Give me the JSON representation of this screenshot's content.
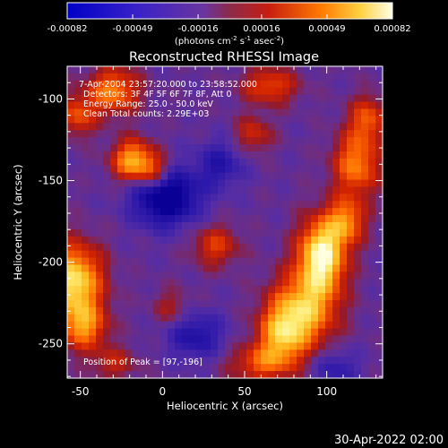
{
  "chart_data": {
    "type": "heatmap",
    "title": "Reconstructed RHESSI Image",
    "xlabel": "Heliocentric X (arcsec)",
    "ylabel": "Heliocentric Y (arcsec)",
    "xlim": [
      -58,
      134
    ],
    "ylim": [
      -271,
      -80
    ],
    "xticks": [
      -50,
      0,
      50,
      100
    ],
    "yticks": [
      -250,
      -200,
      -150,
      -100
    ],
    "colorbar": {
      "range": [
        -0.00082,
        0.00082
      ],
      "tick_labels": [
        "-0.00082",
        "-0.00049",
        "-0.00016",
        "0.00016",
        "0.00049",
        "0.00082"
      ],
      "tick_values": [
        -0.00082,
        -0.00049,
        -0.00016,
        0.00016,
        0.00049,
        0.00082
      ],
      "unit_prefix": "(photons cm",
      "unit_exp1": "-2",
      "unit_mid": " s",
      "unit_exp2": "-1",
      "unit_mid2": " asec",
      "unit_exp3": "-2",
      "unit_suffix": ")"
    },
    "annotations": [
      "7-Apr-2004 23:57:20.000 to 23:58:52.000",
      "Detectors: 3F 4F 5F 6F 7F 8F, Att 0",
      "Energy Range: 25.0 - 50.0 keV",
      "Clean    Total counts: 2.29E+03"
    ],
    "peak_label": "Position of Peak = [97,-196]",
    "peak": [
      97,
      -196
    ],
    "sources": [
      {
        "x": 97,
        "y": -196,
        "sx": 10,
        "sy": 16,
        "amp": 1.0
      },
      {
        "x": 85,
        "y": -230,
        "sx": 14,
        "sy": 16,
        "amp": 0.75
      },
      {
        "x": 112,
        "y": -175,
        "sx": 8,
        "sy": 10,
        "amp": 0.55
      },
      {
        "x": 72,
        "y": -245,
        "sx": 10,
        "sy": 12,
        "amp": 0.55
      },
      {
        "x": -54,
        "y": -212,
        "sx": 12,
        "sy": 16,
        "amp": 0.9
      },
      {
        "x": -48,
        "y": -240,
        "sx": 10,
        "sy": 10,
        "amp": 0.55
      },
      {
        "x": -18,
        "y": -138,
        "sx": 9,
        "sy": 9,
        "amp": 0.75
      },
      {
        "x": -5,
        "y": -145,
        "sx": 7,
        "sy": 7,
        "amp": 0.45
      },
      {
        "x": -30,
        "y": -95,
        "sx": 11,
        "sy": 10,
        "amp": 0.6
      },
      {
        "x": -52,
        "y": -110,
        "sx": 8,
        "sy": 9,
        "amp": 0.45
      },
      {
        "x": 118,
        "y": -140,
        "sx": 10,
        "sy": 14,
        "amp": 0.6
      },
      {
        "x": 125,
        "y": -112,
        "sx": 8,
        "sy": 10,
        "amp": 0.45
      },
      {
        "x": 65,
        "y": -92,
        "sx": 12,
        "sy": 8,
        "amp": 0.45
      },
      {
        "x": 55,
        "y": -122,
        "sx": 8,
        "sy": 8,
        "amp": 0.35
      },
      {
        "x": 32,
        "y": -190,
        "sx": 10,
        "sy": 9,
        "amp": 0.4
      },
      {
        "x": 60,
        "y": -262,
        "sx": 14,
        "sy": 8,
        "amp": 0.45
      },
      {
        "x": -30,
        "y": -262,
        "sx": 10,
        "sy": 7,
        "amp": 0.3
      },
      {
        "x": 5,
        "y": -228,
        "sx": 8,
        "sy": 8,
        "amp": 0.25
      }
    ],
    "holes": [
      {
        "x": 2,
        "y": -160,
        "sx": 14,
        "sy": 12,
        "amp": -0.75
      },
      {
        "x": 35,
        "y": -140,
        "sx": 10,
        "sy": 10,
        "amp": -0.35
      },
      {
        "x": 20,
        "y": -245,
        "sx": 12,
        "sy": 10,
        "amp": -0.4
      },
      {
        "x": 105,
        "y": -265,
        "sx": 10,
        "sy": 8,
        "amp": -0.3
      }
    ]
  },
  "footer_date": "30-Apr-2022 02:00"
}
